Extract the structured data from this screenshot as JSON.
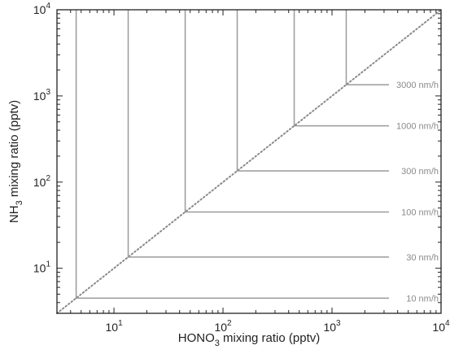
{
  "chart_data": {
    "type": "line",
    "x_scale": "log",
    "y_scale": "log",
    "xlim": [
      3,
      10000
    ],
    "ylim": [
      3,
      10000
    ],
    "x_ticks": [
      {
        "value": 10,
        "base": "10",
        "exp": "1"
      },
      {
        "value": 100,
        "base": "10",
        "exp": "2"
      },
      {
        "value": 1000,
        "base": "10",
        "exp": "3"
      },
      {
        "value": 10000,
        "base": "10",
        "exp": "4"
      }
    ],
    "y_ticks": [
      {
        "value": 10,
        "base": "10",
        "exp": "1"
      },
      {
        "value": 100,
        "base": "10",
        "exp": "2"
      },
      {
        "value": 1000,
        "base": "10",
        "exp": "3"
      },
      {
        "value": 10000,
        "base": "10",
        "exp": "4"
      }
    ],
    "xlabel": {
      "pre": "HONO",
      "sub": "3",
      "post": " mixing ratio (pptv)"
    },
    "ylabel": {
      "pre": "NH",
      "sub": "3",
      "post": " mixing ratio (pptv)"
    },
    "diagonal": {
      "style": "dotted",
      "from": [
        3,
        3
      ],
      "to": [
        10000,
        10000
      ]
    },
    "contours": [
      {
        "label": "10 nm/h",
        "corner": 4.5
      },
      {
        "label": "30 nm/h",
        "corner": 13.5
      },
      {
        "label": "100 nm/h",
        "corner": 45
      },
      {
        "label": "300 nm/h",
        "corner": 135
      },
      {
        "label": "1000 nm/h",
        "corner": 450
      },
      {
        "label": "3000 nm/h",
        "corner": 1350
      }
    ],
    "line_color": "#9a9a9a",
    "grid": false
  }
}
